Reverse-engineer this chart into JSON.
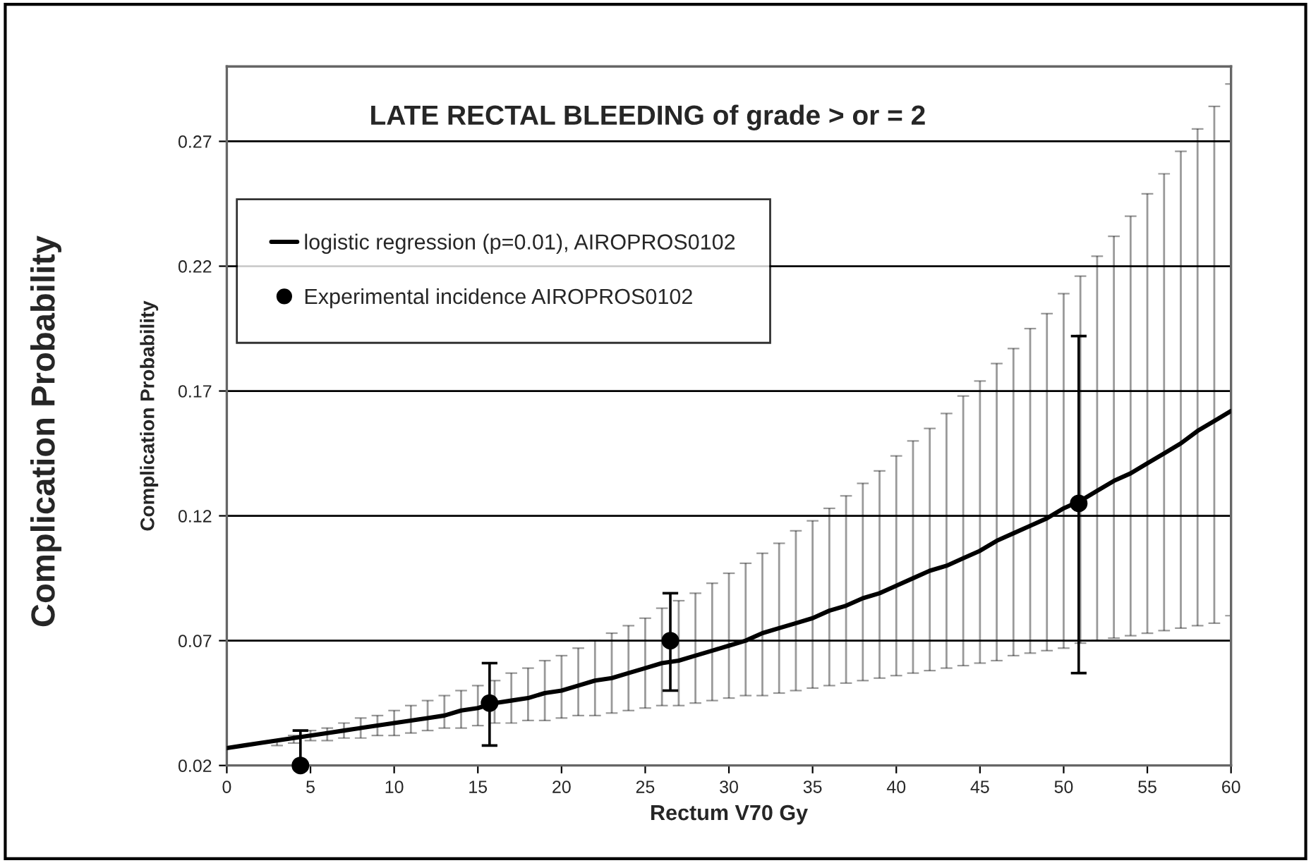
{
  "chart_data": {
    "type": "line",
    "title": "LATE RECTAL BLEEDING of grade > or = 2",
    "xlabel": "Rectum V70 Gy",
    "ylabel": "Complication Probability",
    "annotations": [
      "Complication Probability"
    ],
    "xlim": [
      0,
      60
    ],
    "xticks": [
      0,
      5,
      10,
      15,
      20,
      25,
      30,
      35,
      40,
      45,
      50,
      55,
      60
    ],
    "ylim": [
      0.02,
      0.3
    ],
    "yticks": [
      0.02,
      0.07,
      0.12,
      0.17,
      0.22,
      0.27
    ],
    "grid": "y",
    "legend": "top left",
    "series": [
      {
        "name": "logistic regression (p=0.01), AIROPROS0102",
        "color": "#000000",
        "marker": "none",
        "line_style": "solid",
        "x": [
          0,
          1,
          2,
          3,
          4,
          5,
          6,
          7,
          8,
          9,
          10,
          11,
          12,
          13,
          14,
          15,
          16,
          17,
          18,
          19,
          20,
          21,
          22,
          23,
          24,
          25,
          26,
          27,
          28,
          29,
          30,
          31,
          32,
          33,
          34,
          35,
          36,
          37,
          38,
          39,
          40,
          41,
          42,
          43,
          44,
          45,
          46,
          47,
          48,
          49,
          50,
          51,
          52,
          53,
          54,
          55,
          56,
          57,
          58,
          59,
          60
        ],
        "values": [
          0.027,
          0.028,
          0.029,
          0.03,
          0.031,
          0.032,
          0.033,
          0.034,
          0.035,
          0.036,
          0.037,
          0.038,
          0.039,
          0.04,
          0.042,
          0.043,
          0.045,
          0.046,
          0.047,
          0.049,
          0.05,
          0.052,
          0.054,
          0.055,
          0.057,
          0.059,
          0.061,
          0.062,
          0.064,
          0.066,
          0.068,
          0.07,
          0.073,
          0.075,
          0.077,
          0.079,
          0.082,
          0.084,
          0.087,
          0.089,
          0.092,
          0.095,
          0.098,
          0.1,
          0.103,
          0.106,
          0.11,
          0.113,
          0.116,
          0.119,
          0.123,
          0.126,
          0.13,
          0.134,
          0.137,
          0.141,
          0.145,
          0.149,
          0.154,
          0.158,
          0.162
        ],
        "errors": [
          null,
          null,
          null,
          [
            0.028,
            0.03
          ],
          [
            0.029,
            0.032
          ],
          [
            0.03,
            0.034
          ],
          [
            0.03,
            0.035
          ],
          [
            0.031,
            0.037
          ],
          [
            0.031,
            0.039
          ],
          [
            0.032,
            0.04
          ],
          [
            0.032,
            0.042
          ],
          [
            0.033,
            0.044
          ],
          [
            0.034,
            0.046
          ],
          [
            0.035,
            0.048
          ],
          [
            0.035,
            0.05
          ],
          [
            0.036,
            0.052
          ],
          [
            0.037,
            0.054
          ],
          [
            0.037,
            0.057
          ],
          [
            0.038,
            0.059
          ],
          [
            0.038,
            0.062
          ],
          [
            0.039,
            0.064
          ],
          [
            0.04,
            0.067
          ],
          [
            0.04,
            0.07
          ],
          [
            0.041,
            0.073
          ],
          [
            0.042,
            0.076
          ],
          [
            0.043,
            0.079
          ],
          [
            0.044,
            0.083
          ],
          [
            0.044,
            0.086
          ],
          [
            0.045,
            0.089
          ],
          [
            0.046,
            0.093
          ],
          [
            0.047,
            0.097
          ],
          [
            0.048,
            0.101
          ],
          [
            0.048,
            0.105
          ],
          [
            0.049,
            0.109
          ],
          [
            0.05,
            0.114
          ],
          [
            0.051,
            0.118
          ],
          [
            0.052,
            0.123
          ],
          [
            0.053,
            0.128
          ],
          [
            0.054,
            0.133
          ],
          [
            0.055,
            0.138
          ],
          [
            0.056,
            0.144
          ],
          [
            0.057,
            0.15
          ],
          [
            0.058,
            0.155
          ],
          [
            0.059,
            0.161
          ],
          [
            0.06,
            0.168
          ],
          [
            0.061,
            0.174
          ],
          [
            0.062,
            0.181
          ],
          [
            0.064,
            0.187
          ],
          [
            0.065,
            0.195
          ],
          [
            0.066,
            0.201
          ],
          [
            0.067,
            0.209
          ],
          [
            0.069,
            0.216
          ],
          [
            0.07,
            0.224
          ],
          [
            0.071,
            0.232
          ],
          [
            0.072,
            0.24
          ],
          [
            0.073,
            0.249
          ],
          [
            0.074,
            0.257
          ],
          [
            0.075,
            0.266
          ],
          [
            0.076,
            0.275
          ],
          [
            0.077,
            0.284
          ],
          [
            0.08,
            0.293
          ]
        ]
      },
      {
        "name": "Experimental incidence AIROPROS0102",
        "type": "scatter",
        "color": "#000000",
        "marker": "circle",
        "x": [
          4.4,
          15.7,
          26.5,
          50.9
        ],
        "values": [
          0.02,
          0.045,
          0.07,
          0.125
        ],
        "errors": [
          [
            0.02,
            0.034
          ],
          [
            0.028,
            0.061
          ],
          [
            0.05,
            0.089
          ],
          [
            0.057,
            0.192
          ]
        ]
      }
    ]
  }
}
